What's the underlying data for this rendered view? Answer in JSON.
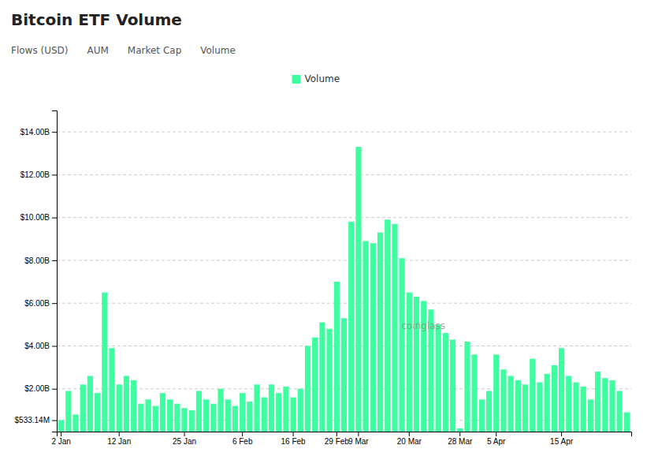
{
  "chart_data": {
    "type": "bar",
    "title": "Bitcoin ETF Volume",
    "annotations": [
      "Flows (USD)",
      "AUM",
      "Market Cap",
      "Volume",
      "coinglass"
    ],
    "categories": [
      "2 Jan",
      null,
      null,
      null,
      null,
      null,
      null,
      null,
      "12 Jan",
      null,
      null,
      null,
      null,
      null,
      null,
      null,
      null,
      "25 Jan",
      null,
      null,
      null,
      null,
      null,
      null,
      null,
      "6 Feb",
      null,
      null,
      null,
      null,
      null,
      null,
      "16 Feb",
      null,
      null,
      null,
      null,
      null,
      "29 Feb",
      null,
      null,
      "9 Mar",
      null,
      null,
      null,
      null,
      null,
      null,
      "20 Mar",
      null,
      null,
      null,
      null,
      null,
      null,
      "28 Mar",
      null,
      null,
      null,
      null,
      "5 Apr",
      null,
      null,
      null,
      null,
      null,
      null,
      null,
      null,
      "15 Apr",
      null,
      null,
      null,
      null,
      null,
      null,
      null,
      null,
      null
    ],
    "series": [
      {
        "name": "Volume",
        "color": "#3dffa0",
        "values": [
          0.533,
          1.9,
          0.8,
          2.2,
          2.6,
          1.8,
          6.5,
          3.9,
          2.2,
          2.6,
          2.4,
          1.3,
          1.5,
          1.2,
          1.8,
          1.5,
          1.3,
          1.1,
          1.0,
          1.9,
          1.5,
          1.3,
          2.0,
          1.5,
          1.2,
          1.8,
          1.4,
          2.2,
          1.6,
          2.2,
          1.8,
          2.1,
          1.6,
          2.0,
          4.0,
          4.4,
          5.1,
          4.8,
          7.0,
          5.3,
          9.8,
          13.3,
          8.9,
          8.8,
          9.3,
          9.9,
          9.7,
          8.1,
          6.5,
          6.3,
          6.1,
          5.7,
          5.0,
          4.6,
          4.3,
          0.15,
          4.2,
          3.6,
          1.5,
          1.9,
          3.6,
          2.9,
          2.6,
          2.4,
          2.2,
          3.4,
          2.3,
          2.7,
          3.1,
          3.9,
          2.6,
          2.3,
          2.1,
          1.5,
          2.8,
          2.5,
          2.4,
          1.9,
          0.9
        ]
      }
    ],
    "ylim": [
      0,
      15.0
    ],
    "yticks": [
      {
        "value": 0.53314,
        "label": "$533.14M"
      },
      {
        "value": 2.0,
        "label": "$2.00B"
      },
      {
        "value": 4.0,
        "label": "$4.00B"
      },
      {
        "value": 6.0,
        "label": "$6.00B"
      },
      {
        "value": 8.0,
        "label": "$8.00B"
      },
      {
        "value": 10.0,
        "label": "$10.00B"
      },
      {
        "value": 12.0,
        "label": "$12.00B"
      },
      {
        "value": 14.0,
        "label": "$14.00B"
      }
    ],
    "grid": true,
    "legend": "top"
  }
}
